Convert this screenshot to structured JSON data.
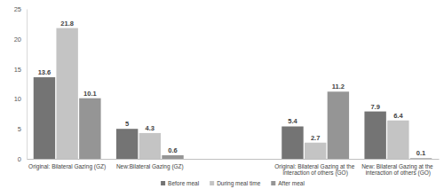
{
  "chart_data": {
    "type": "bar",
    "categories": [
      "Original: Bilateral Gazing (GZ)",
      "New:Bilateral Gazing (GZ)",
      null,
      "Original: Bilateral Gazing at the interaction of others (GO)",
      "New: Bilateral Gazing at the interaction of others (GO)"
    ],
    "series": [
      {
        "name": "Before meal",
        "color": "#747474",
        "values": [
          13.6,
          5,
          null,
          5.4,
          7.9
        ]
      },
      {
        "name": "During meal time",
        "color": "#c4c4c4",
        "values": [
          21.8,
          4.3,
          null,
          2.7,
          6.4
        ]
      },
      {
        "name": "After meal",
        "color": "#959595",
        "values": [
          10.1,
          0.6,
          null,
          11.2,
          0.1
        ]
      }
    ],
    "ylim": [
      0,
      25
    ],
    "yticks": [
      0,
      5,
      10,
      15,
      20,
      25
    ],
    "grid": false,
    "legend": "bottom",
    "data_labels": true
  }
}
